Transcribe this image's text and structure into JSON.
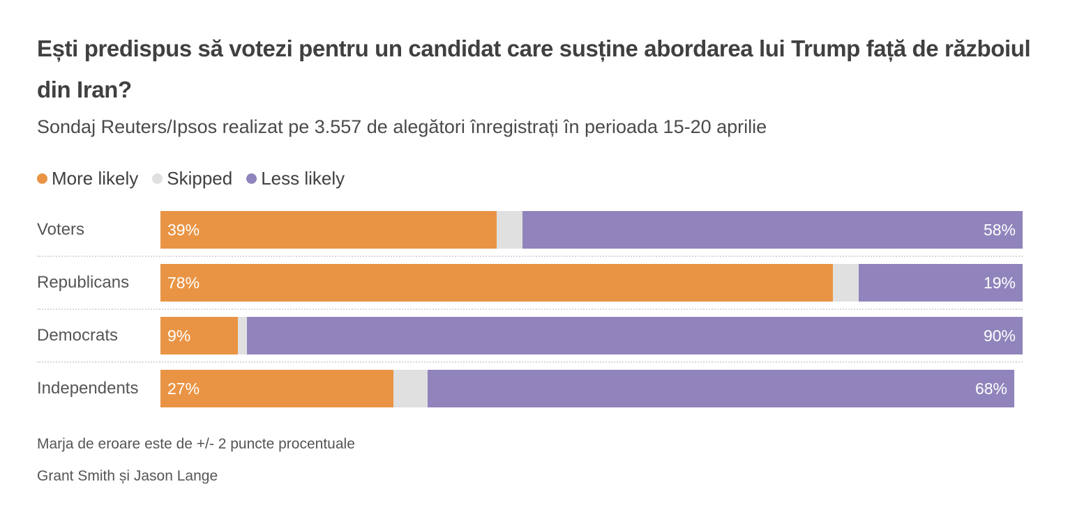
{
  "title": "Ești predispus să votezi pentru un candidat care susține abordarea lui Trump față de războiul din Iran?",
  "subtitle": "Sondaj Reuters/Ipsos realizat pe 3.557 de alegători înregistrați în perioada 15-20 aprilie",
  "legend": [
    {
      "label": "More likely",
      "color": "#E99444"
    },
    {
      "label": "Skipped",
      "color": "#E0E0E0"
    },
    {
      "label": "Less likely",
      "color": "#9184BC"
    }
  ],
  "footer": {
    "note": "Marja de eroare este de +/- 2 puncte procentuale",
    "credit": "Grant Smith și Jason Lange"
  },
  "chart_data": {
    "type": "bar",
    "orientation": "horizontal",
    "stacked": true,
    "title": "Ești predispus să votezi pentru un candidat care susține abordarea lui Trump față de războiul din Iran?",
    "subtitle": "Sondaj Reuters/Ipsos realizat pe 3.557 de alegători înregistrați în perioada 15-20 aprilie",
    "categories": [
      "Voters",
      "Republicans",
      "Democrats",
      "Independents"
    ],
    "series": [
      {
        "name": "More likely",
        "color": "#E99444",
        "values": [
          39,
          78,
          9,
          27
        ],
        "labels": [
          "39%",
          "78%",
          "9%",
          "27%"
        ]
      },
      {
        "name": "Skipped",
        "color": "#E0E0E0",
        "values": [
          3,
          3,
          1,
          4
        ],
        "labels": [
          "",
          "",
          "",
          ""
        ]
      },
      {
        "name": "Less likely",
        "color": "#9184BC",
        "values": [
          58,
          19,
          90,
          68
        ],
        "labels": [
          "58%",
          "19%",
          "90%",
          "68%"
        ]
      }
    ],
    "xlim": [
      0,
      100
    ],
    "xlabel": "",
    "ylabel": "",
    "grid": false,
    "legend_position": "top-left",
    "notes": [
      "Marja de eroare este de +/- 2 puncte procentuale",
      "Grant Smith și Jason Lange"
    ]
  }
}
